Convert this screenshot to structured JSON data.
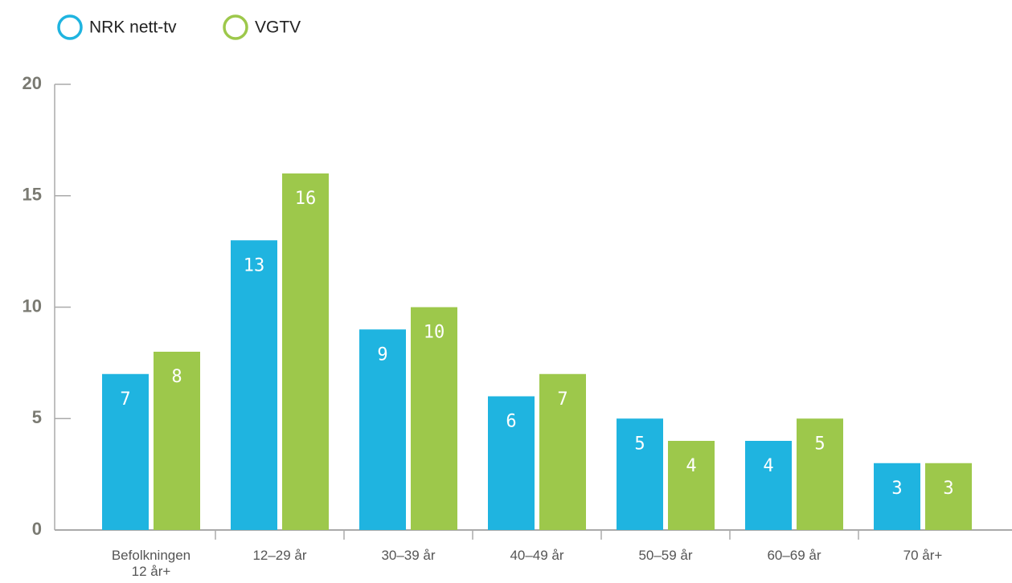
{
  "chart_data": {
    "type": "bar",
    "categories": [
      "Befolkningen 12 år+",
      "12–29 år",
      "30–39 år",
      "40–49 år",
      "50–59 år",
      "60–69 år",
      "70 år+"
    ],
    "series": [
      {
        "name": "NRK nett-tv",
        "color": "#1fb4e0",
        "values": [
          7,
          13,
          9,
          6,
          5,
          4,
          3
        ]
      },
      {
        "name": "VGTV",
        "color": "#9dc84b",
        "values": [
          8,
          16,
          10,
          7,
          4,
          5,
          3
        ]
      }
    ],
    "ylim": [
      0,
      20
    ],
    "yticks": [
      0,
      5,
      10,
      15,
      20
    ],
    "legend": "top-left"
  }
}
